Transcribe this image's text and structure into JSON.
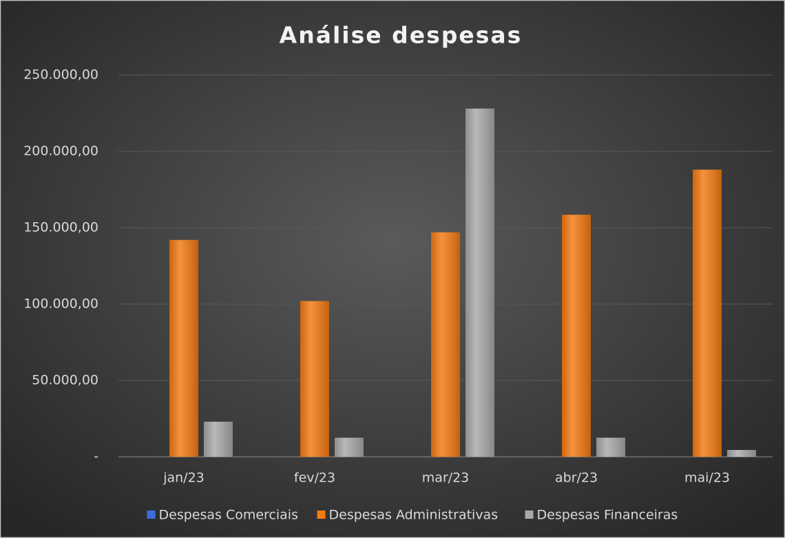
{
  "chart_data": {
    "type": "bar",
    "title": "Análise despesas",
    "categories": [
      "jan/23",
      "fev/23",
      "mar/23",
      "abr/23",
      "mai/23"
    ],
    "series": [
      {
        "name": "Despesas Comerciais",
        "color": "#3a6fd8",
        "values": [
          0,
          0,
          0,
          0,
          0
        ]
      },
      {
        "name": "Despesas Administrativas",
        "color": "#f47a12",
        "values": [
          142000,
          102000,
          147000,
          158500,
          188000
        ]
      },
      {
        "name": "Despesas Financeiras",
        "color": "#a9a9a9",
        "values": [
          23000,
          12500,
          228000,
          12500,
          4500
        ]
      }
    ],
    "ylim": [
      0,
      250000
    ],
    "yticks": [
      {
        "value": 0,
        "label": "-"
      },
      {
        "value": 50000,
        "label": "50.000,00"
      },
      {
        "value": 100000,
        "label": "100.000,00"
      },
      {
        "value": 150000,
        "label": "150.000,00"
      },
      {
        "value": 200000,
        "label": "200.000,00"
      },
      {
        "value": 250000,
        "label": "250.000,00"
      }
    ],
    "grid": true,
    "legend": "bottom"
  }
}
